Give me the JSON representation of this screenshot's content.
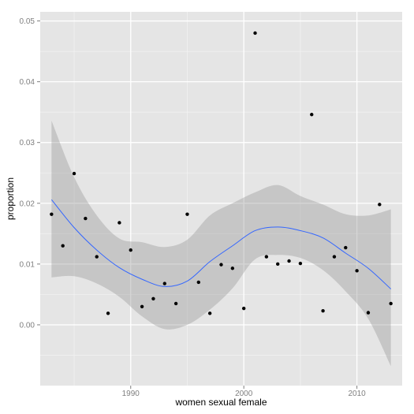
{
  "chart_data": {
    "type": "scatter",
    "title": "",
    "xlabel": "women sexual female",
    "ylabel": "proportion",
    "xlim": [
      1982,
      2014
    ],
    "ylim": [
      -0.01,
      0.0515
    ],
    "x_ticks": [
      1990,
      2000,
      2010
    ],
    "x_tick_labels": [
      "1990",
      "2000",
      "2010"
    ],
    "y_ticks": [
      0.0,
      0.01,
      0.02,
      0.03,
      0.04,
      0.05
    ],
    "y_tick_labels": [
      "0.00",
      "0.01",
      "0.02",
      "0.03",
      "0.04",
      "0.05"
    ],
    "grid": true,
    "colors": {
      "panel": "#e5e5e5",
      "grid_major": "#ffffff",
      "grid_minor": "#f2f2f2",
      "points": "#000000",
      "smooth_line": "#3366ff",
      "ribbon": "#999999"
    },
    "points": {
      "x": [
        1983,
        1984,
        1985,
        1986,
        1987,
        1988,
        1989,
        1990,
        1991,
        1992,
        1993,
        1994,
        1995,
        1996,
        1997,
        1998,
        1999,
        2000,
        2001,
        2002,
        2003,
        2004,
        2005,
        2006,
        2007,
        2008,
        2009,
        2010,
        2011,
        2012,
        2013
      ],
      "y": [
        0.0182,
        0.013,
        0.0249,
        0.0175,
        0.0112,
        0.0019,
        0.0168,
        0.0123,
        0.003,
        0.0043,
        0.0068,
        0.0035,
        0.0182,
        0.007,
        0.0019,
        0.0099,
        0.0093,
        0.0027,
        0.048,
        0.0112,
        0.01,
        0.0105,
        0.0101,
        0.0346,
        0.0023,
        0.0112,
        0.0127,
        0.0089,
        0.002,
        0.0198,
        0.0035
      ]
    },
    "smooth": {
      "x": [
        1983,
        1985,
        1987,
        1989,
        1991,
        1993,
        1995,
        1997,
        1999,
        2001,
        2003,
        2005,
        2007,
        2009,
        2011,
        2013
      ],
      "y": [
        0.0206,
        0.016,
        0.0123,
        0.0094,
        0.0075,
        0.0063,
        0.0072,
        0.0104,
        0.013,
        0.0155,
        0.0161,
        0.0155,
        0.0143,
        0.0118,
        0.0093,
        0.0059
      ],
      "lower": [
        0.0078,
        0.008,
        0.0068,
        0.0046,
        0.0014,
        -0.0007,
        0.0,
        0.0025,
        0.006,
        0.0108,
        0.0115,
        0.011,
        0.009,
        0.0055,
        0.001,
        -0.0068
      ],
      "upper": [
        0.0336,
        0.0243,
        0.018,
        0.0142,
        0.0136,
        0.0128,
        0.014,
        0.018,
        0.02,
        0.0218,
        0.023,
        0.0212,
        0.0198,
        0.0182,
        0.018,
        0.019
      ]
    }
  }
}
